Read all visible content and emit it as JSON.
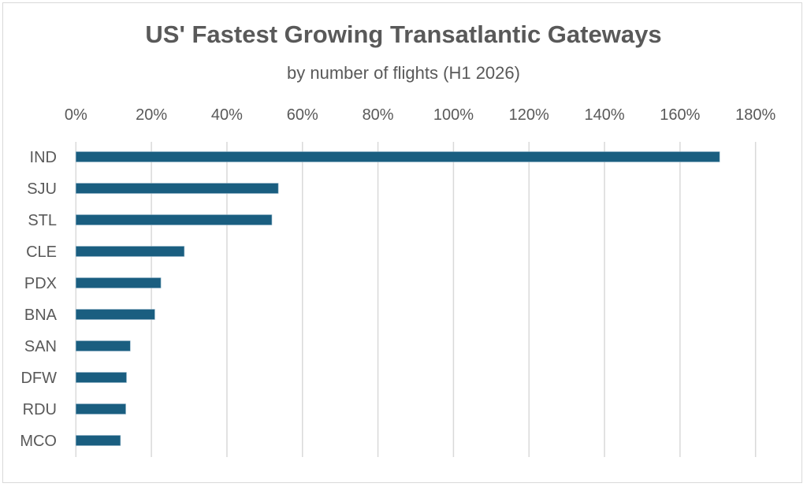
{
  "chart_data": {
    "type": "bar",
    "orientation": "horizontal",
    "title": "US' Fastest Growing Transatlantic Gateways",
    "subtitle": "by number of flights (H1 2026)",
    "xlabel": "",
    "ylabel": "",
    "categories": [
      "IND",
      "SJU",
      "STL",
      "CLE",
      "PDX",
      "BNA",
      "SAN",
      "DFW",
      "RDU",
      "MCO"
    ],
    "values": [
      170.5,
      53.6,
      51.9,
      28.7,
      22.5,
      20.9,
      14.4,
      13.4,
      13.2,
      11.8
    ],
    "value_unit": "%",
    "xlim": [
      0,
      180
    ],
    "x_ticks": [
      "0%",
      "20%",
      "40%",
      "60%",
      "80%",
      "100%",
      "120%",
      "140%",
      "160%",
      "180%"
    ],
    "x_axis_position": "top",
    "grid": "vertical",
    "legend": "none",
    "bar_color": "#1a5e80",
    "grid_color": "#d9d9d9",
    "text_color": "#595959"
  }
}
